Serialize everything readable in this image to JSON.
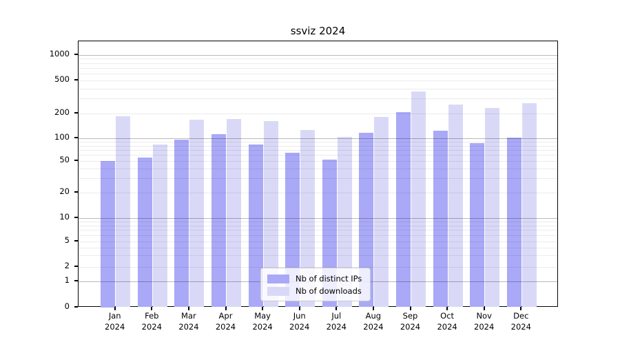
{
  "chart_data": {
    "type": "bar",
    "title": "ssviz 2024",
    "categories": [
      "Jan 2024",
      "Feb 2024",
      "Mar 2024",
      "Apr 2024",
      "May 2024",
      "Jun 2024",
      "Jul 2024",
      "Aug 2024",
      "Sep 2024",
      "Oct 2024",
      "Nov 2024",
      "Dec 2024"
    ],
    "series": [
      {
        "name": "Nb of distinct IPs",
        "color": "#a9a9f7",
        "values": [
          50,
          55,
          95,
          112,
          82,
          65,
          52,
          117,
          205,
          123,
          87,
          101
        ]
      },
      {
        "name": "Nb of downloads",
        "color": "#d9d9f7",
        "values": [
          185,
          82,
          168,
          171,
          160,
          125,
          103,
          180,
          365,
          255,
          230,
          264
        ]
      }
    ],
    "xlabel": "",
    "ylabel": "",
    "yscale": "symlog",
    "yticks": [
      0,
      1,
      2,
      5,
      10,
      20,
      50,
      100,
      200,
      500,
      1000
    ],
    "ylim": [
      0,
      1400
    ],
    "grid": true,
    "major_grid_color": "#b9b9b9",
    "minor_grid_color": "#ebebeb",
    "legend_position": "lower center"
  }
}
